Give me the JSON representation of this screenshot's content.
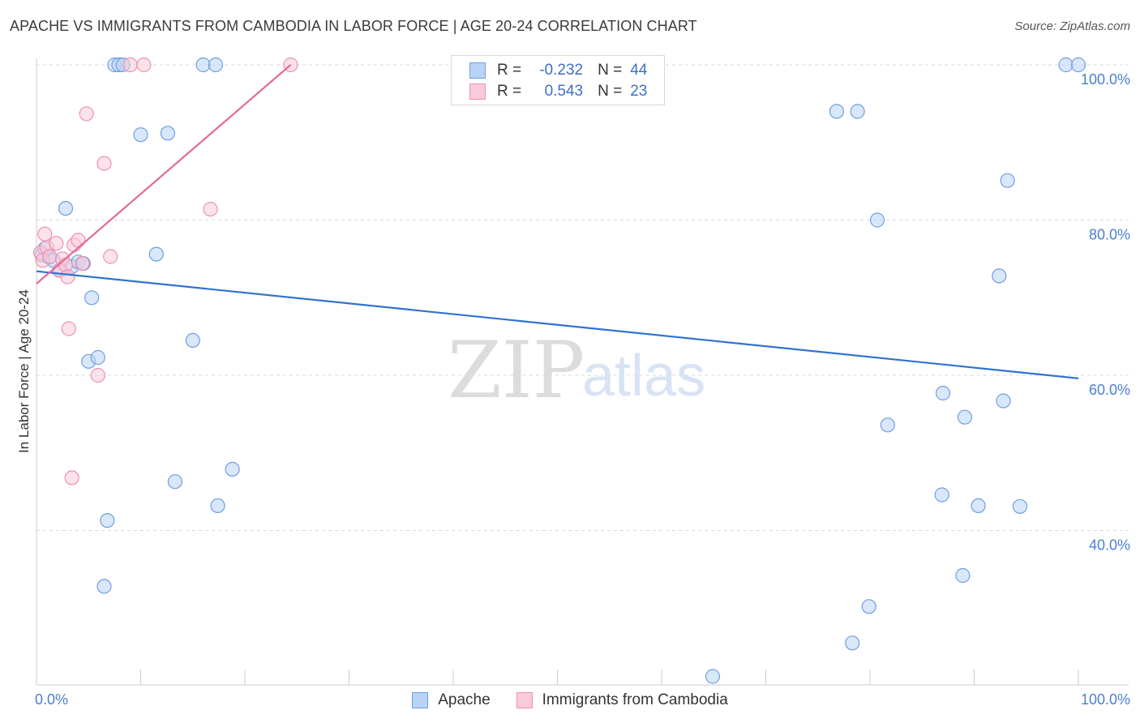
{
  "title": "APACHE VS IMMIGRANTS FROM CAMBODIA IN LABOR FORCE | AGE 20-24 CORRELATION CHART",
  "source": {
    "label": "Source:",
    "site": "ZipAtlas.com"
  },
  "watermark": {
    "zip": "ZIP",
    "atlas": "atlas"
  },
  "colors": {
    "apache_fill": "#b9d3f5",
    "apache_stroke": "#6f9fe0",
    "apache_line": "#2f73d0",
    "cambodia_fill": "#f9cad9",
    "cambodia_stroke": "#ec92b1",
    "cambodia_line": "#e46b96",
    "tick_text": "#4a7fd0",
    "grid": "#d9d9d9"
  },
  "legend": {
    "rows": [
      {
        "r_label": "R =",
        "r_value": "-0.232",
        "n_label": "N =",
        "n_value": "44"
      },
      {
        "r_label": "R =",
        "r_value": "0.543",
        "n_label": "N =",
        "n_value": "23"
      }
    ]
  },
  "chart_data": {
    "type": "scatter",
    "title": "APACHE VS IMMIGRANTS FROM CAMBODIA IN LABOR FORCE | AGE 20-24 CORRELATION CHART",
    "xlabel": "",
    "ylabel": "In Labor Force | Age 20-24",
    "xlim": [
      0,
      100
    ],
    "ylim": [
      21,
      102
    ],
    "x_tick_labels": [
      {
        "value": 0,
        "label": "0.0%"
      },
      {
        "value": 100,
        "label": "100.0%"
      }
    ],
    "y_tick_labels": [
      {
        "value": 100,
        "label": "100.0%"
      },
      {
        "value": 80,
        "label": "80.0%"
      },
      {
        "value": 60,
        "label": "60.0%"
      },
      {
        "value": 40,
        "label": "40.0%"
      }
    ],
    "grid": true,
    "legend_position": "top-center",
    "series": [
      {
        "name": "Apache",
        "r": -0.232,
        "n": 44,
        "trend": {
          "x": [
            0,
            100
          ],
          "y": [
            73.4,
            59.6
          ]
        },
        "points": [
          {
            "x": 0.5,
            "y": 75.5
          },
          {
            "x": 0.8,
            "y": 76.3
          },
          {
            "x": 1.2,
            "y": 75.2
          },
          {
            "x": 1.6,
            "y": 74.8
          },
          {
            "x": 2.3,
            "y": 73.6
          },
          {
            "x": 2.8,
            "y": 81.5
          },
          {
            "x": 3.4,
            "y": 74.0
          },
          {
            "x": 4.0,
            "y": 74.6
          },
          {
            "x": 4.5,
            "y": 74.4
          },
          {
            "x": 5.3,
            "y": 70.0
          },
          {
            "x": 5.0,
            "y": 61.8
          },
          {
            "x": 5.9,
            "y": 62.3
          },
          {
            "x": 6.8,
            "y": 41.3
          },
          {
            "x": 6.5,
            "y": 32.8
          },
          {
            "x": 7.5,
            "y": 100.0
          },
          {
            "x": 7.9,
            "y": 100.0
          },
          {
            "x": 8.3,
            "y": 100.0
          },
          {
            "x": 10.0,
            "y": 91.0
          },
          {
            "x": 12.6,
            "y": 91.2
          },
          {
            "x": 11.5,
            "y": 75.6
          },
          {
            "x": 15.0,
            "y": 64.5
          },
          {
            "x": 13.3,
            "y": 46.3
          },
          {
            "x": 16.0,
            "y": 100.0
          },
          {
            "x": 17.2,
            "y": 100.0
          },
          {
            "x": 17.4,
            "y": 43.2
          },
          {
            "x": 18.8,
            "y": 47.9
          },
          {
            "x": 76.8,
            "y": 94.0
          },
          {
            "x": 78.8,
            "y": 94.0
          },
          {
            "x": 80.7,
            "y": 80.0
          },
          {
            "x": 81.7,
            "y": 53.6
          },
          {
            "x": 79.9,
            "y": 30.2
          },
          {
            "x": 78.3,
            "y": 25.5
          },
          {
            "x": 64.9,
            "y": 21.2
          },
          {
            "x": 87.0,
            "y": 57.7
          },
          {
            "x": 89.1,
            "y": 54.6
          },
          {
            "x": 86.9,
            "y": 44.6
          },
          {
            "x": 90.4,
            "y": 43.2
          },
          {
            "x": 88.9,
            "y": 34.2
          },
          {
            "x": 93.2,
            "y": 85.1
          },
          {
            "x": 92.4,
            "y": 72.8
          },
          {
            "x": 92.8,
            "y": 56.7
          },
          {
            "x": 94.4,
            "y": 43.1
          },
          {
            "x": 98.8,
            "y": 100.0
          },
          {
            "x": 100.0,
            "y": 100.0
          }
        ]
      },
      {
        "name": "Immigrants from Cambodia",
        "r": 0.543,
        "n": 23,
        "trend": {
          "x": [
            0,
            24.4
          ],
          "y": [
            71.8,
            100.0
          ]
        },
        "points": [
          {
            "x": 0.4,
            "y": 75.8
          },
          {
            "x": 0.6,
            "y": 74.8
          },
          {
            "x": 0.8,
            "y": 78.2
          },
          {
            "x": 1.0,
            "y": 76.5
          },
          {
            "x": 1.3,
            "y": 75.3
          },
          {
            "x": 1.9,
            "y": 77.0
          },
          {
            "x": 2.2,
            "y": 73.5
          },
          {
            "x": 2.5,
            "y": 75.0
          },
          {
            "x": 2.8,
            "y": 74.2
          },
          {
            "x": 3.0,
            "y": 72.7
          },
          {
            "x": 3.1,
            "y": 66.0
          },
          {
            "x": 3.4,
            "y": 46.8
          },
          {
            "x": 3.6,
            "y": 76.8
          },
          {
            "x": 4.0,
            "y": 77.4
          },
          {
            "x": 4.4,
            "y": 74.4
          },
          {
            "x": 4.8,
            "y": 93.7
          },
          {
            "x": 5.9,
            "y": 60.0
          },
          {
            "x": 6.5,
            "y": 87.3
          },
          {
            "x": 7.1,
            "y": 75.3
          },
          {
            "x": 9.0,
            "y": 100.0
          },
          {
            "x": 10.3,
            "y": 100.0
          },
          {
            "x": 16.7,
            "y": 81.4
          },
          {
            "x": 24.4,
            "y": 100.0
          }
        ]
      }
    ]
  }
}
